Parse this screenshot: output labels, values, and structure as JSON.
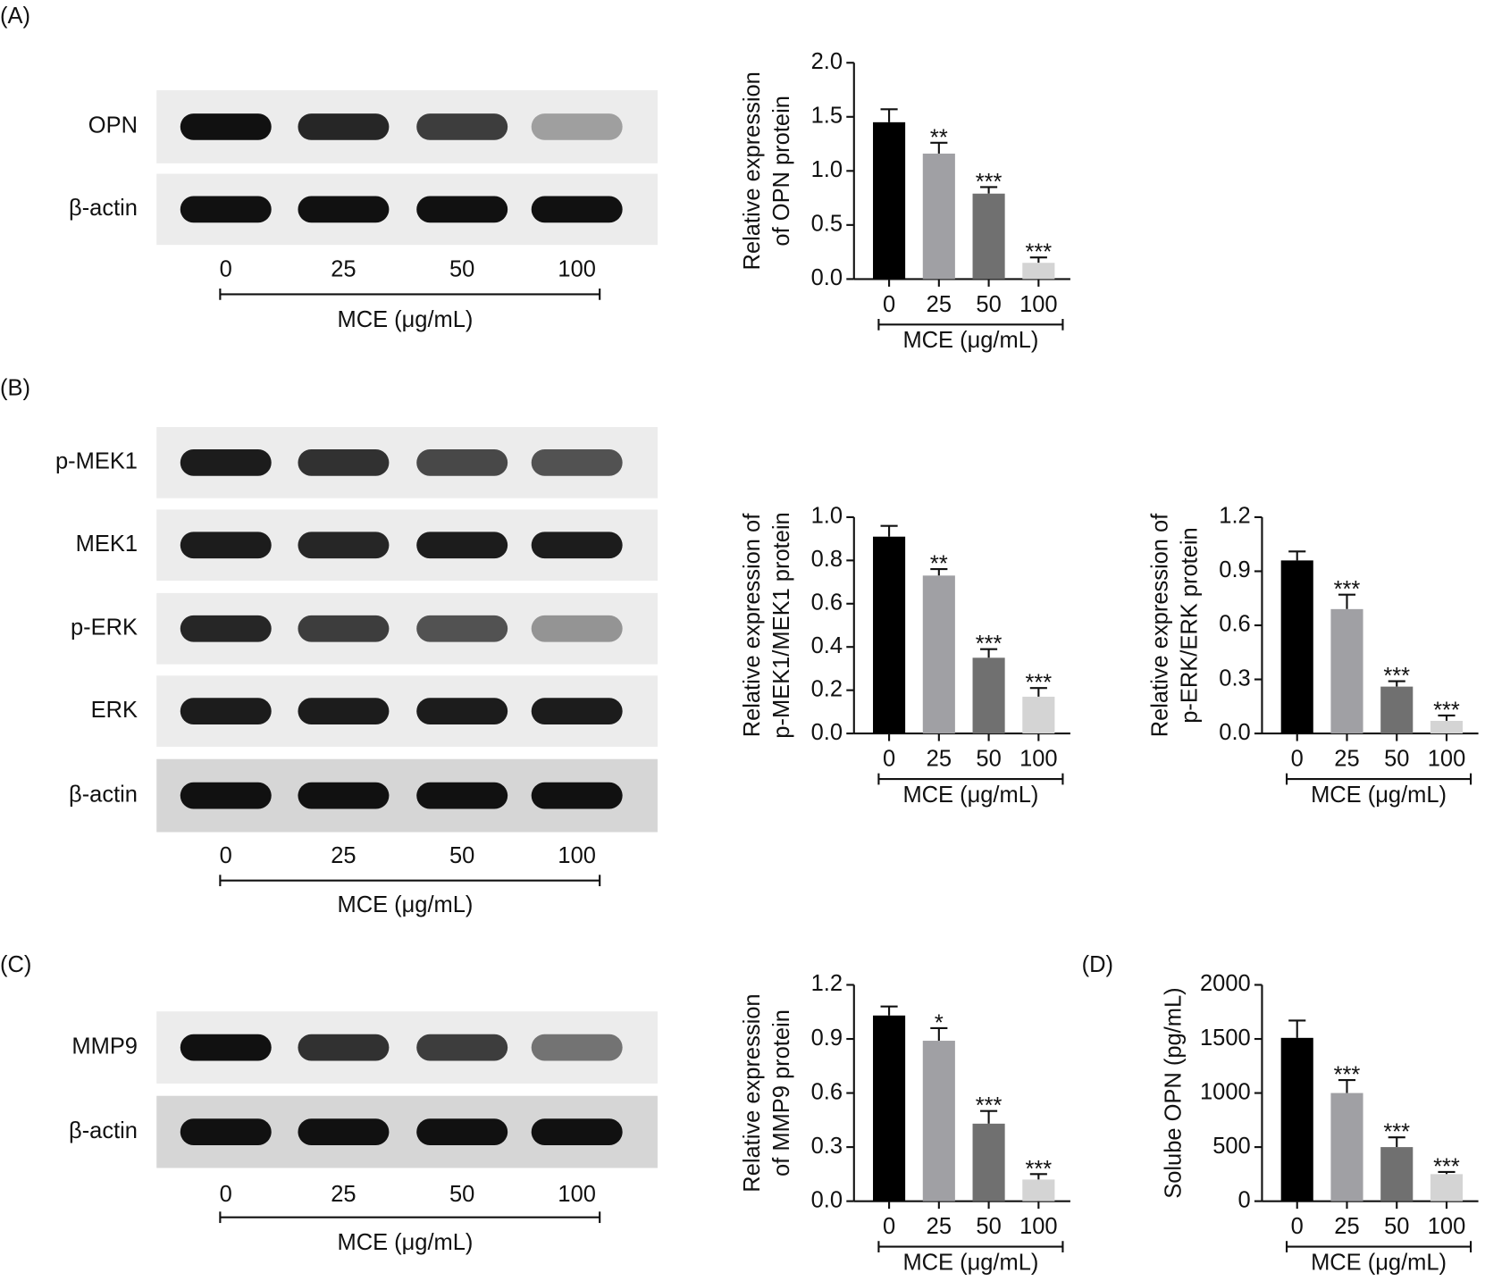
{
  "panel_labels": [
    "(A)",
    "(B)",
    "(C)",
    "(D)"
  ],
  "blots": [
    {
      "rows": [
        "OPN",
        "β-actin"
      ],
      "lanes": [
        "0",
        "25",
        "50",
        "100"
      ],
      "xlabel": "MCE (μg/mL)"
    },
    {
      "rows": [
        "p-MEK1",
        "MEK1",
        "p-ERK",
        "ERK",
        "β-actin"
      ],
      "lanes": [
        "0",
        "25",
        "50",
        "100"
      ],
      "xlabel": "MCE (μg/mL)"
    },
    {
      "rows": [
        "MMP9",
        "β-actin"
      ],
      "lanes": [
        "0",
        "25",
        "50",
        "100"
      ],
      "xlabel": "MCE (μg/mL)"
    }
  ],
  "chart_data": [
    {
      "type": "bar",
      "ylabel": [
        "Relative expression",
        "of OPN protein"
      ],
      "xlabel": "MCE (μg/mL)",
      "categories": [
        "0",
        "25",
        "50",
        "100"
      ],
      "values": [
        1.45,
        1.16,
        0.79,
        0.15
      ],
      "errors": [
        0.12,
        0.1,
        0.06,
        0.05
      ],
      "annotations": [
        null,
        "**",
        "***",
        "***"
      ],
      "colors": [
        "#000000",
        "#a0a0a4",
        "#707070",
        "#d4d4d4"
      ],
      "ylim": [
        0,
        2
      ],
      "yticks": [
        {
          "value": 0,
          "label": "0.0"
        },
        0.5,
        {
          "value": 1,
          "label": "1.0"
        },
        1.5,
        {
          "value": 2,
          "label": "2.0"
        }
      ]
    },
    {
      "type": "bar",
      "ylabel": [
        "Relative expression of",
        "p-MEK1/MEK1 protein"
      ],
      "xlabel": "MCE (μg/mL)",
      "categories": [
        "0",
        "25",
        "50",
        "100"
      ],
      "values": [
        0.91,
        0.73,
        0.35,
        0.17
      ],
      "errors": [
        0.05,
        0.03,
        0.04,
        0.04
      ],
      "annotations": [
        null,
        "**",
        "***",
        "***"
      ],
      "colors": [
        "#000000",
        "#a0a0a4",
        "#707070",
        "#d4d4d4"
      ],
      "ylim": [
        0,
        1
      ],
      "yticks": [
        {
          "value": 0,
          "label": "0.0"
        },
        0.2,
        0.4,
        0.6,
        0.8,
        {
          "value": 1,
          "label": "1.0"
        }
      ]
    },
    {
      "type": "bar",
      "ylabel": [
        "Relative expression of",
        "p-ERK/ERK protein"
      ],
      "xlabel": "MCE (μg/mL)",
      "categories": [
        "0",
        "25",
        "50",
        "100"
      ],
      "values": [
        0.96,
        0.69,
        0.26,
        0.07
      ],
      "errors": [
        0.05,
        0.08,
        0.03,
        0.03
      ],
      "annotations": [
        null,
        "***",
        "***",
        "***"
      ],
      "colors": [
        "#000000",
        "#a0a0a4",
        "#707070",
        "#d4d4d4"
      ],
      "ylim": [
        0,
        1.2
      ],
      "yticks": [
        {
          "value": 0,
          "label": "0.0"
        },
        0.3,
        0.6,
        0.9,
        1.2
      ]
    },
    {
      "type": "bar",
      "ylabel": [
        "Relative expression",
        "of MMP9 protein"
      ],
      "xlabel": "MCE (μg/mL)",
      "categories": [
        "0",
        "25",
        "50",
        "100"
      ],
      "values": [
        1.03,
        0.89,
        0.43,
        0.12
      ],
      "errors": [
        0.05,
        0.07,
        0.07,
        0.03
      ],
      "annotations": [
        null,
        "*",
        "***",
        "***"
      ],
      "colors": [
        "#000000",
        "#a0a0a4",
        "#707070",
        "#d4d4d4"
      ],
      "ylim": [
        0,
        1.2
      ],
      "yticks": [
        {
          "value": 0,
          "label": "0.0"
        },
        0.3,
        0.6,
        0.9,
        1.2
      ]
    },
    {
      "type": "bar",
      "ylabel": [
        "Solube OPN (pg/mL)"
      ],
      "xlabel": "MCE (μg/mL)",
      "categories": [
        "0",
        "25",
        "50",
        "100"
      ],
      "values": [
        1510,
        1000,
        500,
        250
      ],
      "errors": [
        160,
        120,
        90,
        20
      ],
      "annotations": [
        null,
        "***",
        "***",
        "***"
      ],
      "colors": [
        "#000000",
        "#a0a0a4",
        "#707070",
        "#d4d4d4"
      ],
      "ylim": [
        0,
        2000
      ],
      "yticks": [
        0,
        500,
        1000,
        1500,
        2000
      ]
    }
  ]
}
